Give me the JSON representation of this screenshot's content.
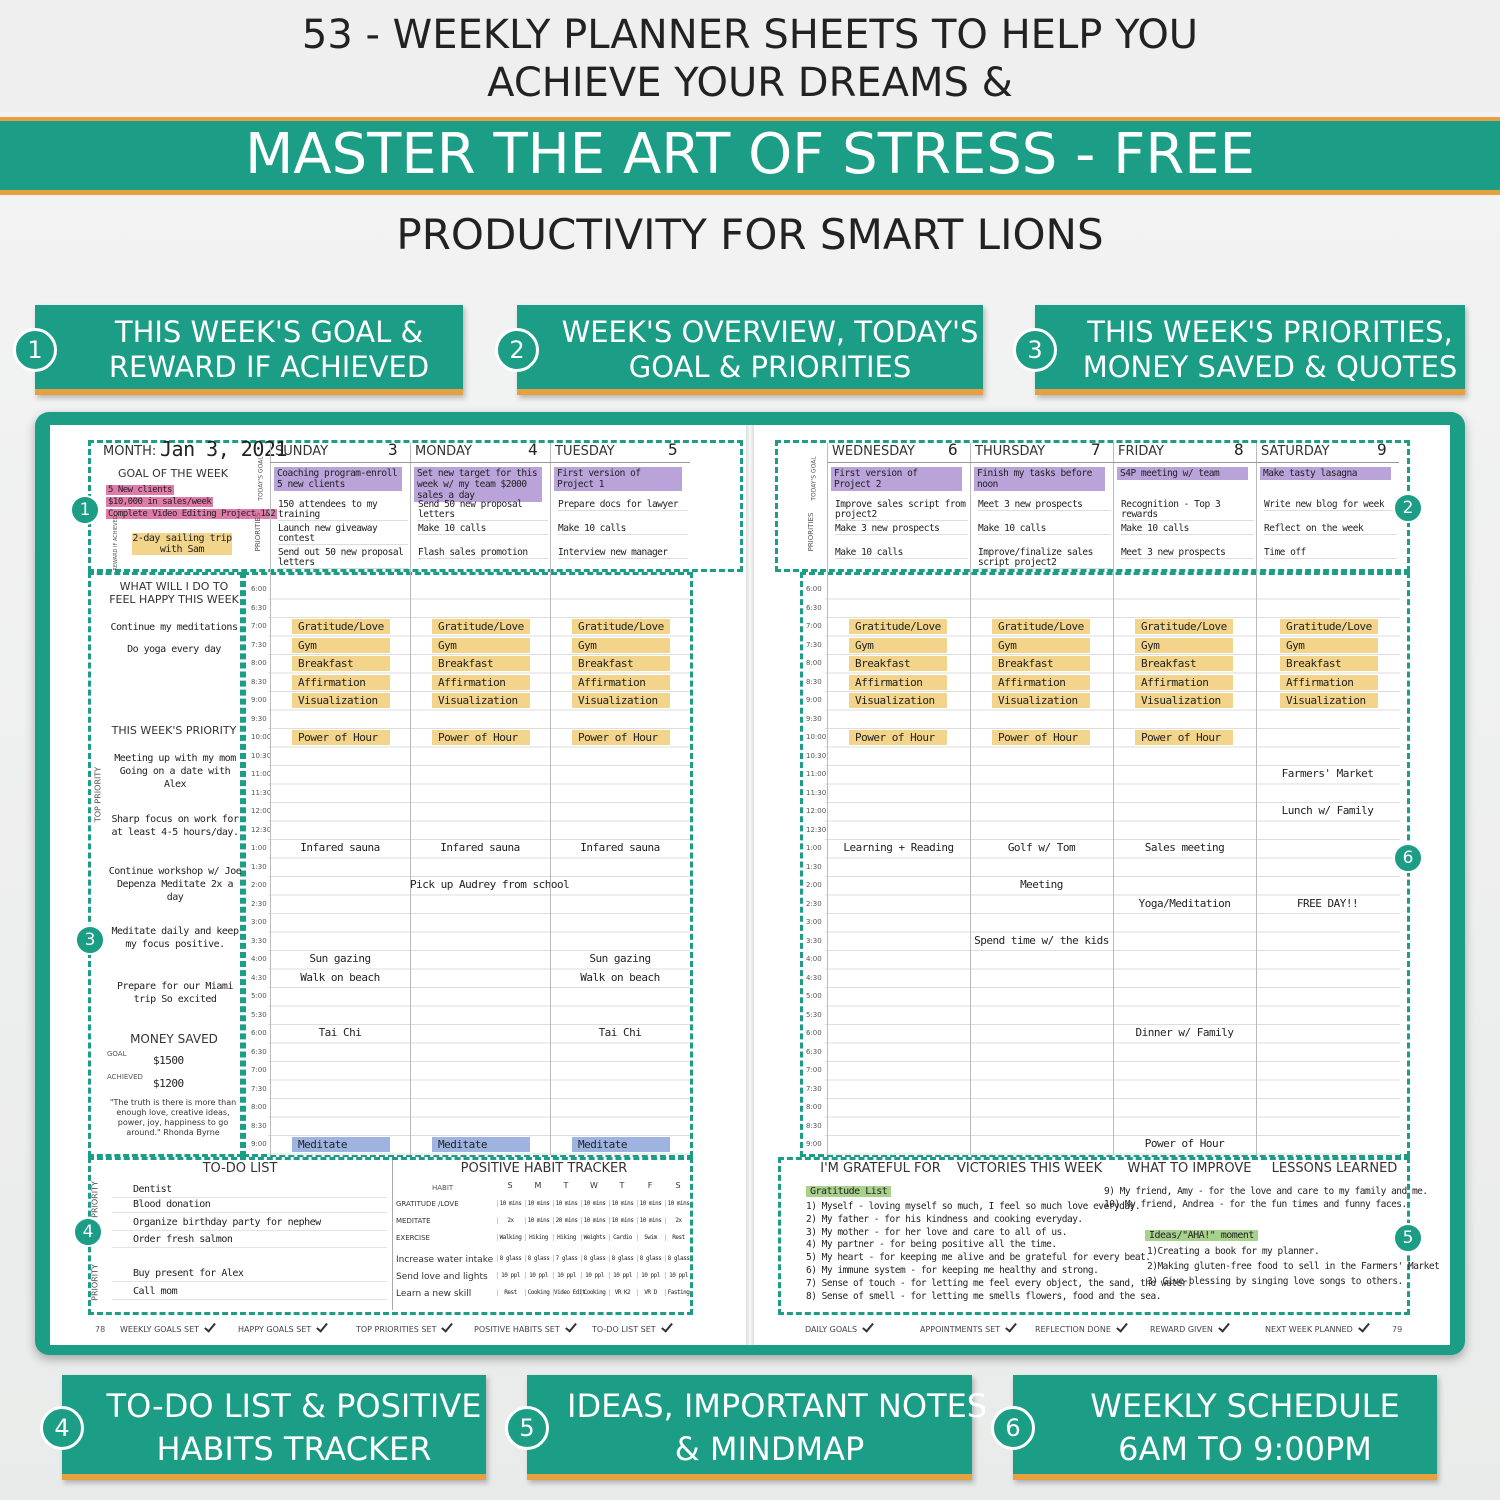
{
  "header": {
    "line1": "53 - WEEKLY PLANNER SHEETS TO HELP YOU",
    "line2": "ACHIEVE YOUR DREAMS &",
    "banner": "MASTER THE ART OF STRESS - FREE",
    "line3": "PRODUCTIVITY FOR SMART LIONS"
  },
  "features": [
    {
      "number": "1",
      "lines": [
        "THIS WEEK'S GOAL &",
        "REWARD IF ACHIEVED"
      ]
    },
    {
      "number": "2",
      "lines": [
        "WEEK'S OVERVIEW, TODAY'S",
        "GOAL & PRIORITIES"
      ]
    },
    {
      "number": "3",
      "lines": [
        "THIS WEEK'S PRIORITIES,",
        "MONEY SAVED & QUOTES"
      ]
    },
    {
      "number": "4",
      "lines": [
        "TO-DO LIST & POSITIVE",
        "HABITS TRACKER"
      ]
    },
    {
      "number": "5",
      "lines": [
        "IDEAS, IMPORTANT NOTES",
        "& MINDMAP"
      ]
    },
    {
      "number": "6",
      "lines": [
        "WEEKLY SCHEDULE",
        "6AM TO 9:00PM"
      ]
    }
  ],
  "planner": {
    "month_label": "MONTH:",
    "month_value": "Jan 3, 2021",
    "goal_title": "GOAL OF THE WEEK",
    "goals": [
      "5 New clients",
      "$10,000 in sales/week",
      "Complete Video Editing Project 1&2"
    ],
    "reward_label": "REWARD IF ACHIEVED",
    "reward": "2-day sailing trip with Sam",
    "happy_title": "WHAT WILL I DO TO FEEL HAPPY THIS WEEK",
    "happy_items": [
      "Continue my meditations",
      "Do yoga every day"
    ],
    "priority_title": "THIS WEEK'S PRIORITY",
    "priority_side": "TOP PRIORITY",
    "priority_items": [
      "Meeting up with my mom Going on a date with Alex",
      "Sharp focus on work for at least 4-5 hours/day.",
      "Continue workshop w/ Joe Depenza Meditate 2x a day",
      "Meditate daily and keep my focus positive.",
      "Prepare for our Miami trip So excited"
    ],
    "money_title": "MONEY SAVED",
    "money_goal_label": "GOAL",
    "money_goal": "$1500",
    "money_achieved_label": "ACHIEVED",
    "money_achieved": "$1200",
    "quote": "\"The truth is there is more than enough love, creative ideas, power, joy, happiness to go around.\" Rhonda Byrne",
    "todays_goal_label": "TODAY'S GOAL",
    "priorities_label": "PRIORITIES",
    "times": [
      "6:00",
      "6:30",
      "7:00",
      "7:30",
      "8:00",
      "8:30",
      "9:00",
      "9:30",
      "10:00",
      "10:30",
      "11:00",
      "11:30",
      "12:00",
      "12:30",
      "1:00",
      "1:30",
      "2:00",
      "2:30",
      "3:00",
      "3:30",
      "4:00",
      "4:30",
      "5:00",
      "5:30",
      "6:00",
      "6:30",
      "7:00",
      "7:30",
      "8:00",
      "8:30",
      "9:00"
    ],
    "days": [
      {
        "name": "SUNDAY",
        "date": "3",
        "goal": "Coaching program-enroll 5 new clients",
        "priorities": [
          "150 attendees to my training",
          "Launch new giveaway contest",
          "Send out 50 new proposal letters"
        ],
        "events": [
          {
            "text": "Gratitude/Love",
            "color": "#f2d58a"
          },
          {
            "text": "Gym",
            "color": "#f2d58a"
          },
          {
            "text": "Breakfast",
            "color": "#f2d58a"
          },
          {
            "text": "Affirmation",
            "color": "#f2d58a"
          },
          {
            "text": "Visualization",
            "color": "#f2d58a"
          },
          {
            "text": "Power of Hour",
            "color": "#f2d58a"
          },
          {
            "text": "Infared sauna"
          },
          {
            "text": "Sun gazing"
          },
          {
            "text": "Walk on beach"
          },
          {
            "text": "Tai Chi"
          },
          {
            "text": "Meditate",
            "color": "#9fb3e0"
          }
        ]
      },
      {
        "name": "MONDAY",
        "date": "4",
        "goal": "Set new target for this week w/ my team $2000 sales a day",
        "priorities": [
          "Send 50 new proposal letters",
          "Make 10 calls",
          "Flash sales promotion"
        ],
        "events": [
          {
            "text": "Gratitude/Love",
            "color": "#f2d58a"
          },
          {
            "text": "Gym",
            "color": "#f2d58a"
          },
          {
            "text": "Breakfast",
            "color": "#f2d58a"
          },
          {
            "text": "Affirmation",
            "color": "#f2d58a"
          },
          {
            "text": "Visualization",
            "color": "#f2d58a"
          },
          {
            "text": "Power of Hour",
            "color": "#f2d58a"
          },
          {
            "text": "Infared sauna"
          },
          {
            "text": "Pick up Audrey from school"
          },
          {
            "text": "Meditate",
            "color": "#9fb3e0"
          }
        ]
      },
      {
        "name": "TUESDAY",
        "date": "5",
        "goal": "First version of Project 1",
        "priorities": [
          "Prepare docs for lawyer",
          "Make 10 calls",
          "Interview new manager"
        ],
        "events": [
          {
            "text": "Gratitude/Love",
            "color": "#f2d58a"
          },
          {
            "text": "Gym",
            "color": "#f2d58a"
          },
          {
            "text": "Breakfast",
            "color": "#f2d58a"
          },
          {
            "text": "Affirmation",
            "color": "#f2d58a"
          },
          {
            "text": "Visualization",
            "color": "#f2d58a"
          },
          {
            "text": "Power of Hour",
            "color": "#f2d58a"
          },
          {
            "text": "Infared sauna"
          },
          {
            "text": "Sun gazing"
          },
          {
            "text": "Walk on beach"
          },
          {
            "text": "Tai Chi"
          },
          {
            "text": "Meditate",
            "color": "#9fb3e0"
          }
        ]
      },
      {
        "name": "WEDNESDAY",
        "date": "6",
        "goal": "First version of Project 2",
        "priorities": [
          "Improve sales script from project2",
          "Make 3 new prospects",
          "Make 10 calls"
        ],
        "events": [
          {
            "text": "Gratitude/Love",
            "color": "#f2d58a"
          },
          {
            "text": "Gym",
            "color": "#f2d58a"
          },
          {
            "text": "Breakfast",
            "color": "#f2d58a"
          },
          {
            "text": "Affirmation",
            "color": "#f2d58a"
          },
          {
            "text": "Visualization",
            "color": "#f2d58a"
          },
          {
            "text": "Power of Hour",
            "color": "#f2d58a"
          },
          {
            "text": "Learning + Reading"
          }
        ]
      },
      {
        "name": "THURSDAY",
        "date": "7",
        "goal": "Finish my tasks before noon",
        "priorities": [
          "Meet 3 new prospects",
          "Make 10 calls",
          "Improve/finalize sales script project2"
        ],
        "events": [
          {
            "text": "Gratitude/Love",
            "color": "#f2d58a"
          },
          {
            "text": "Gym",
            "color": "#f2d58a"
          },
          {
            "text": "Breakfast",
            "color": "#f2d58a"
          },
          {
            "text": "Affirmation",
            "color": "#f2d58a"
          },
          {
            "text": "Visualization",
            "color": "#f2d58a"
          },
          {
            "text": "Power of Hour",
            "color": "#f2d58a"
          },
          {
            "text": "Golf w/ Tom"
          },
          {
            "text": "Meeting"
          },
          {
            "text": "Spend time w/ the kids"
          }
        ]
      },
      {
        "name": "FRIDAY",
        "date": "8",
        "goal": "S4P meeting w/ team",
        "priorities": [
          "Recognition - Top 3 rewards",
          "Make 10 calls",
          "Meet 3 new prospects"
        ],
        "events": [
          {
            "text": "Gratitude/Love",
            "color": "#f2d58a"
          },
          {
            "text": "Gym",
            "color": "#f2d58a"
          },
          {
            "text": "Breakfast",
            "color": "#f2d58a"
          },
          {
            "text": "Affirmation",
            "color": "#f2d58a"
          },
          {
            "text": "Visualization",
            "color": "#f2d58a"
          },
          {
            "text": "Power of Hour",
            "color": "#f2d58a"
          },
          {
            "text": "Sales meeting"
          },
          {
            "text": "Yoga/Meditation"
          },
          {
            "text": "Dinner w/ Family"
          },
          {
            "text": "Power of Hour"
          }
        ]
      },
      {
        "name": "SATURDAY",
        "date": "9",
        "goal": "Make tasty lasagna",
        "priorities": [
          "Write new blog for week",
          "Reflect on the week",
          "Time off"
        ],
        "events": [
          {
            "text": "Gratitude/Love",
            "color": "#f2d58a"
          },
          {
            "text": "Gym",
            "color": "#f2d58a"
          },
          {
            "text": "Breakfast",
            "color": "#f2d58a"
          },
          {
            "text": "Affirmation",
            "color": "#f2d58a"
          },
          {
            "text": "Visualization",
            "color": "#f2d58a"
          },
          {
            "text": "Farmers' Market"
          },
          {
            "text": "Lunch w/ Family"
          },
          {
            "text": "FREE DAY!!"
          }
        ]
      }
    ],
    "todo": {
      "title": "TO-DO LIST",
      "side": "PRIORITY",
      "items": [
        "Dentist",
        "Blood donation",
        "Organize birthday party for nephew",
        "Order fresh salmon",
        "Buy present for Alex",
        "Call mom"
      ]
    },
    "habits": {
      "title": "POSITIVE HABIT TRACKER",
      "habit_label": "HABIT",
      "days": [
        "S",
        "M",
        "T",
        "W",
        "T",
        "F",
        "S"
      ],
      "rows": [
        {
          "name": "GRATITUDE /LOVE",
          "cells": [
            "10 mins",
            "10 mins",
            "10 mins",
            "10 mins",
            "10 mins",
            "10 mins",
            "10 mins"
          ]
        },
        {
          "name": "MEDITATE",
          "cells": [
            "2x",
            "10 mins",
            "20 mins",
            "10 mins",
            "10 mins",
            "10 mins",
            "2x"
          ]
        },
        {
          "name": "EXERCISE",
          "cells": [
            "Walking",
            "Hiking",
            "Hiking",
            "Weights",
            "Cardio",
            "Swim",
            "Rest"
          ]
        },
        {
          "name": "Increase water intake",
          "cells": [
            "8 glass",
            "8 glass",
            "7 glass",
            "8 glass",
            "8 glass",
            "8 glass",
            "8 glass"
          ]
        },
        {
          "name": "Send love and lights",
          "cells": [
            "10 ppl",
            "10 ppl",
            "10 ppl",
            "10 ppl",
            "10 ppl",
            "10 ppl",
            "10 ppl"
          ]
        },
        {
          "name": "Learn a new skill",
          "cells": [
            "Rest",
            "Cooking",
            "Video Edit",
            "Cooking",
            "VR K2",
            "VR D",
            "Fasting"
          ]
        }
      ]
    },
    "reflection_headers": [
      "I'M GRATEFUL FOR",
      "VICTORIES THIS WEEK",
      "WHAT TO IMPROVE",
      "LESSONS LEARNED"
    ],
    "gratitude_tag": "Gratitude List",
    "gratitude_items": [
      "1) Myself - loving myself so much, I feel so much love everyday.",
      "2) My father - for his kindness and cooking everyday.",
      "3) My mother - for her love and care to all of us.",
      "4) My partner - for being positive all the time.",
      "5) My heart - for keeping me alive and be grateful for every beat.",
      "6) My immune system - for keeping me healthy and strong.",
      "7) Sense of touch - for letting me feel every object, the sand, the water.",
      "8) Sense of smell - for letting me smells flowers, food and the sea.",
      "9) My friend, Amy - for the love and care to my family and me.",
      "10) My friend, Andrea - for the fun times and funny faces."
    ],
    "ideas_tag": "Ideas/\"AHA!\" moment",
    "ideas_items": [
      "1)Creating a book for my planner.",
      "2)Making gluten-free food to sell in the Farmers' Market",
      "3) Give blessing by singing love songs to others."
    ],
    "left_page_number": "78",
    "right_page_number": "79",
    "left_checks": [
      "WEEKLY GOALS SET",
      "HAPPY GOALS SET",
      "TOP PRIORITIES SET",
      "POSITIVE HABITS SET",
      "TO-DO LIST SET"
    ],
    "right_checks": [
      "DAILY GOALS",
      "APPOINTMENTS SET",
      "REFLECTION DONE",
      "REWARD GIVEN",
      "NEXT WEEK PLANNED"
    ]
  }
}
